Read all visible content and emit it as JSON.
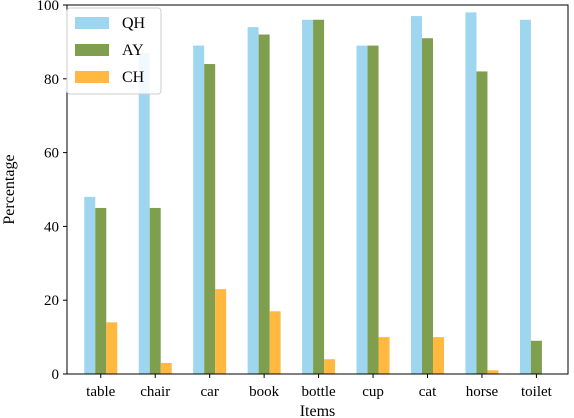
{
  "chart_data": {
    "type": "bar",
    "title": "",
    "xlabel": "Items",
    "ylabel": "Percentage",
    "categories": [
      "table",
      "chair",
      "car",
      "book",
      "bottle",
      "cup",
      "cat",
      "horse",
      "toilet"
    ],
    "series": [
      {
        "name": "QH",
        "color": "#9dd6ee",
        "values": [
          48,
          87,
          89,
          94,
          96,
          89,
          97,
          98,
          96
        ]
      },
      {
        "name": "AY",
        "color": "#7f9f4f",
        "values": [
          45,
          45,
          84,
          92,
          96,
          89,
          91,
          82,
          9
        ]
      },
      {
        "name": "CH",
        "color": "#ffb940",
        "values": [
          14,
          3,
          23,
          17,
          4,
          10,
          10,
          1,
          0
        ]
      }
    ],
    "ylim": [
      0,
      100
    ],
    "yticks": [
      0,
      20,
      40,
      60,
      80,
      100
    ],
    "grid": false,
    "legend_position": "top-left"
  }
}
